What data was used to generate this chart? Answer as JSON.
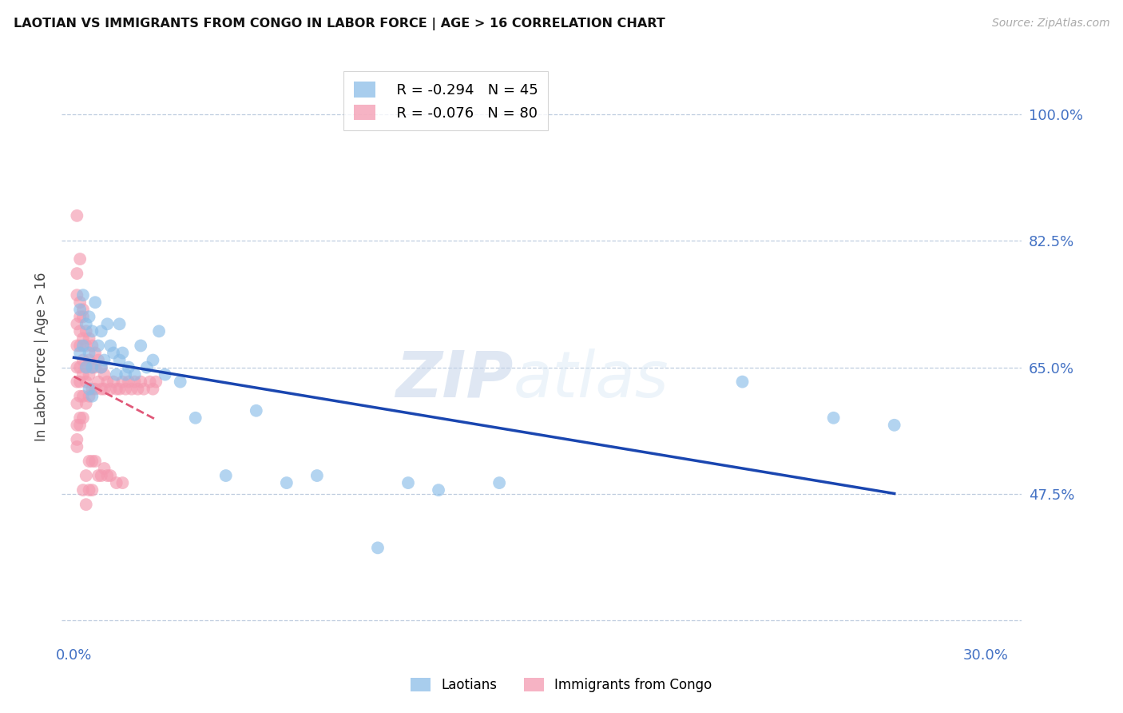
{
  "title": "LAOTIAN VS IMMIGRANTS FROM CONGO IN LABOR FORCE | AGE > 16 CORRELATION CHART",
  "source": "Source: ZipAtlas.com",
  "yticks": [
    0.3,
    0.475,
    0.65,
    0.825,
    1.0
  ],
  "ytick_labels_right": [
    "",
    "47.5%",
    "65.0%",
    "82.5%",
    "100.0%"
  ],
  "xticks": [
    0.0,
    0.05,
    0.1,
    0.15,
    0.2,
    0.25,
    0.3
  ],
  "xtick_labels": [
    "0.0%",
    "",
    "",
    "",
    "",
    "",
    "30.0%"
  ],
  "xlim": [
    -0.004,
    0.312
  ],
  "ylim": [
    0.27,
    1.06
  ],
  "laotian_color": "#8bbde8",
  "congo_color": "#f49ab0",
  "trend_blue": "#1a46b0",
  "trend_pink": "#e05878",
  "watermark_zip": "ZIP",
  "watermark_atlas": "atlas",
  "legend_R1": "R = -0.294",
  "legend_N1": "N = 45",
  "legend_R2": "R = -0.076",
  "legend_N2": "N = 80",
  "ylabel": "In Labor Force | Age > 16",
  "laotian_x": [
    0.002,
    0.002,
    0.003,
    0.003,
    0.004,
    0.004,
    0.005,
    0.005,
    0.005,
    0.006,
    0.006,
    0.006,
    0.007,
    0.008,
    0.009,
    0.009,
    0.01,
    0.011,
    0.012,
    0.013,
    0.014,
    0.015,
    0.015,
    0.016,
    0.017,
    0.018,
    0.02,
    0.022,
    0.024,
    0.026,
    0.028,
    0.03,
    0.035,
    0.04,
    0.05,
    0.06,
    0.07,
    0.08,
    0.1,
    0.11,
    0.12,
    0.14,
    0.22,
    0.25,
    0.27
  ],
  "laotian_y": [
    0.73,
    0.67,
    0.75,
    0.68,
    0.71,
    0.65,
    0.72,
    0.67,
    0.62,
    0.7,
    0.65,
    0.61,
    0.74,
    0.68,
    0.7,
    0.65,
    0.66,
    0.71,
    0.68,
    0.67,
    0.64,
    0.71,
    0.66,
    0.67,
    0.64,
    0.65,
    0.64,
    0.68,
    0.65,
    0.66,
    0.7,
    0.64,
    0.63,
    0.58,
    0.5,
    0.59,
    0.49,
    0.5,
    0.4,
    0.49,
    0.48,
    0.49,
    0.63,
    0.58,
    0.57
  ],
  "congo_x": [
    0.001,
    0.001,
    0.001,
    0.001,
    0.001,
    0.001,
    0.001,
    0.001,
    0.002,
    0.002,
    0.002,
    0.002,
    0.002,
    0.002,
    0.002,
    0.003,
    0.003,
    0.003,
    0.003,
    0.003,
    0.003,
    0.004,
    0.004,
    0.004,
    0.004,
    0.004,
    0.005,
    0.005,
    0.005,
    0.005,
    0.006,
    0.006,
    0.006,
    0.007,
    0.007,
    0.007,
    0.008,
    0.008,
    0.009,
    0.009,
    0.01,
    0.01,
    0.011,
    0.012,
    0.013,
    0.014,
    0.015,
    0.016,
    0.017,
    0.018,
    0.019,
    0.02,
    0.021,
    0.022,
    0.023,
    0.025,
    0.026,
    0.027,
    0.001,
    0.001,
    0.001,
    0.002,
    0.002,
    0.002,
    0.003,
    0.003,
    0.004,
    0.004,
    0.005,
    0.005,
    0.006,
    0.006,
    0.007,
    0.008,
    0.009,
    0.01,
    0.011,
    0.012,
    0.014,
    0.016
  ],
  "congo_y": [
    0.75,
    0.71,
    0.68,
    0.65,
    0.63,
    0.6,
    0.57,
    0.54,
    0.74,
    0.7,
    0.68,
    0.65,
    0.63,
    0.61,
    0.58,
    0.72,
    0.69,
    0.66,
    0.64,
    0.61,
    0.58,
    0.7,
    0.68,
    0.65,
    0.63,
    0.6,
    0.69,
    0.66,
    0.64,
    0.61,
    0.68,
    0.65,
    0.62,
    0.67,
    0.65,
    0.62,
    0.66,
    0.63,
    0.65,
    0.62,
    0.64,
    0.62,
    0.63,
    0.62,
    0.63,
    0.62,
    0.62,
    0.63,
    0.62,
    0.63,
    0.62,
    0.63,
    0.62,
    0.63,
    0.62,
    0.63,
    0.62,
    0.63,
    0.86,
    0.78,
    0.55,
    0.8,
    0.72,
    0.57,
    0.73,
    0.48,
    0.5,
    0.46,
    0.52,
    0.48,
    0.52,
    0.48,
    0.52,
    0.5,
    0.5,
    0.51,
    0.5,
    0.5,
    0.49,
    0.49
  ]
}
